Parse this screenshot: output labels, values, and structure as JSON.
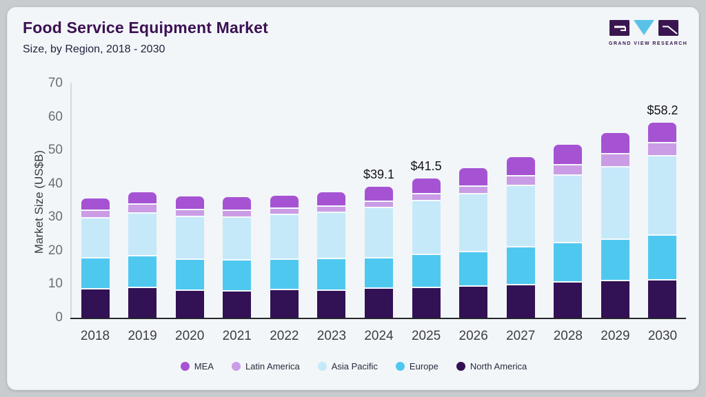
{
  "header": {
    "title": "Food Service Equipment Market",
    "subtitle": "Size, by Region, 2018 - 2030",
    "logo_text": "GRAND VIEW RESEARCH"
  },
  "chart_data": {
    "type": "bar",
    "stacked": true,
    "title": "Food Service Equipment Market",
    "subtitle": "Size, by Region, 2018 - 2030",
    "xlabel": "",
    "ylabel": "Market Size (US$B)",
    "ylim": [
      0,
      70
    ],
    "yticks": [
      0,
      10,
      20,
      30,
      40,
      50,
      60,
      70
    ],
    "grid": false,
    "legend_position": "bottom",
    "categories": [
      "2018",
      "2019",
      "2020",
      "2021",
      "2022",
      "2023",
      "2024",
      "2025",
      "2026",
      "2027",
      "2028",
      "2029",
      "2030"
    ],
    "series": [
      {
        "name": "North America",
        "color": "#321155",
        "values": [
          8.4,
          8.9,
          8.1,
          7.9,
          8.2,
          8.1,
          8.6,
          8.8,
          9.3,
          9.6,
          10.4,
          11.0,
          11.1
        ]
      },
      {
        "name": "Europe",
        "color": "#4fc8f0",
        "values": [
          9.4,
          9.5,
          9.1,
          9.2,
          9.0,
          9.3,
          9.2,
          9.9,
          10.2,
          11.3,
          11.8,
          12.2,
          13.4
        ]
      },
      {
        "name": "Asia Pacific",
        "color": "#c6e9f9",
        "values": [
          11.9,
          12.7,
          12.9,
          12.8,
          13.5,
          13.8,
          15.0,
          16.1,
          17.4,
          18.5,
          20.3,
          21.7,
          23.6
        ]
      },
      {
        "name": "Latin America",
        "color": "#cb9ce6",
        "values": [
          2.3,
          2.7,
          2.1,
          2.1,
          1.9,
          1.9,
          1.8,
          2.1,
          2.2,
          2.8,
          3.1,
          3.8,
          3.9
        ]
      },
      {
        "name": "MEA",
        "color": "#a653d3",
        "values": [
          3.7,
          3.7,
          4.0,
          4.1,
          3.8,
          4.3,
          4.5,
          4.6,
          5.5,
          5.7,
          6.0,
          6.5,
          6.2
        ]
      }
    ],
    "totals": [
      35.7,
      37.5,
      36.2,
      36.1,
      36.4,
      37.4,
      39.1,
      41.5,
      44.6,
      47.9,
      51.6,
      55.2,
      58.2
    ],
    "total_labels": {
      "2024": "$39.1",
      "2025": "$41.5",
      "2030": "$58.2"
    },
    "legend": [
      {
        "label": "MEA",
        "color": "#a653d3"
      },
      {
        "label": "Latin America",
        "color": "#cb9ce6"
      },
      {
        "label": "Asia Pacific",
        "color": "#c6e9f9"
      },
      {
        "label": "Europe",
        "color": "#4fc8f0"
      },
      {
        "label": "North America",
        "color": "#321155"
      }
    ]
  },
  "ui": {
    "colors": {
      "page_background": "#c9cccf",
      "card_background": "#f2f6f8",
      "title": "#3c1053",
      "axis_line_vertical": "#d6dade",
      "axis_line_horizontal": "#26262b",
      "tick_text": "#6b6e74",
      "logo_purple": "#3a1650",
      "logo_blue": "#5bc2e7"
    }
  }
}
